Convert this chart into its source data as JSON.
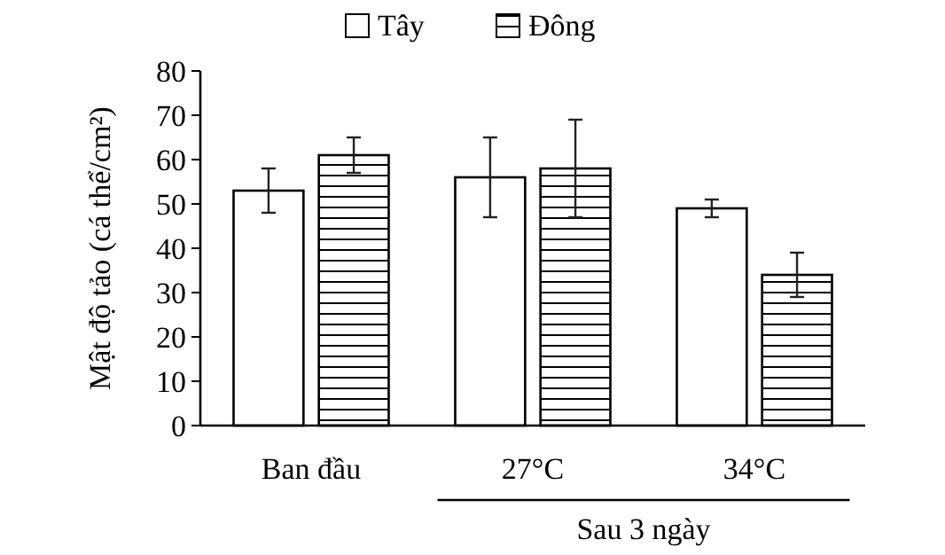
{
  "chart_data": {
    "type": "bar",
    "ylabel": "Mật độ tảo (cá thể/cm²)",
    "categories": [
      "Ban đầu",
      "27°C",
      "34°C"
    ],
    "series": [
      {
        "name": "Tây",
        "color": "#ffffff",
        "values": [
          53,
          56,
          49
        ],
        "errors": [
          5,
          9,
          2
        ]
      },
      {
        "name": "Đông",
        "color": "#000000",
        "values": [
          61,
          58,
          34
        ],
        "errors": [
          4,
          11,
          5
        ]
      }
    ],
    "ylim": [
      0,
      80
    ],
    "yticks": [
      0,
      10,
      20,
      30,
      40,
      50,
      60,
      70,
      80
    ],
    "grid": false,
    "legend": "top",
    "annotations": [
      "Sau 3 ngày"
    ]
  }
}
